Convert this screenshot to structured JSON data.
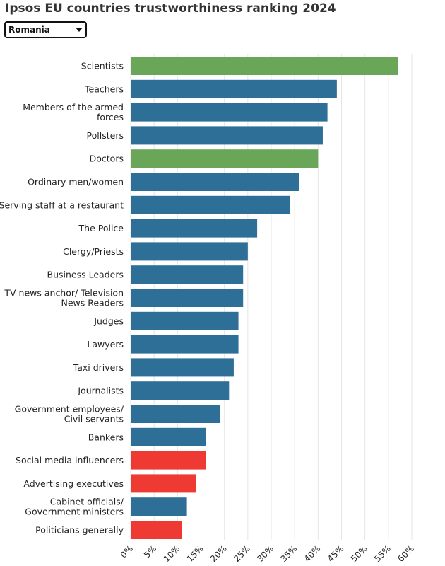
{
  "title": "Ipsos EU countries trustworthiness ranking 2024",
  "country_selector": {
    "value": "Romania"
  },
  "colors": {
    "trusted": "#6aa657",
    "neutral": "#2e6f97",
    "distrusted": "#ef3a34",
    "grid": "#e6e6e6"
  },
  "chart_data": {
    "type": "bar",
    "orientation": "horizontal",
    "categories": [
      "Scientists",
      "Teachers",
      "Members of the armed forces",
      "Pollsters",
      "Doctors",
      "Ordinary men/women",
      "Serving staff at a restaurant",
      "The Police",
      "Clergy/Priests",
      "Business Leaders",
      "TV news anchor/ Television News Readers",
      "Judges",
      "Lawyers",
      "Taxi drivers",
      "Journalists",
      "Government employees/ Civil servants",
      "Bankers",
      "Social media influencers",
      "Advertising executives",
      "Cabinet officials/ Government ministers",
      "Politicians generally"
    ],
    "category_lines": [
      [
        "Scientists"
      ],
      [
        "Teachers"
      ],
      [
        "Members of the armed",
        "forces"
      ],
      [
        "Pollsters"
      ],
      [
        "Doctors"
      ],
      [
        "Ordinary men/women"
      ],
      [
        "Serving staff at a restaurant"
      ],
      [
        "The Police"
      ],
      [
        "Clergy/Priests"
      ],
      [
        "Business Leaders"
      ],
      [
        "TV news anchor/ Television",
        "News Readers"
      ],
      [
        "Judges"
      ],
      [
        "Lawyers"
      ],
      [
        "Taxi drivers"
      ],
      [
        "Journalists"
      ],
      [
        "Government employees/",
        "Civil servants"
      ],
      [
        "Bankers"
      ],
      [
        "Social media influencers"
      ],
      [
        "Advertising executives"
      ],
      [
        "Cabinet officials/",
        "Government ministers"
      ],
      [
        "Politicians generally"
      ]
    ],
    "values": [
      57,
      44,
      42,
      41,
      40,
      36,
      34,
      27,
      25,
      24,
      24,
      23,
      23,
      22,
      21,
      19,
      16,
      16,
      14,
      12,
      11
    ],
    "groups": [
      "trusted",
      "neutral",
      "neutral",
      "neutral",
      "trusted",
      "neutral",
      "neutral",
      "neutral",
      "neutral",
      "neutral",
      "neutral",
      "neutral",
      "neutral",
      "neutral",
      "neutral",
      "neutral",
      "neutral",
      "distrusted",
      "distrusted",
      "neutral",
      "distrusted"
    ],
    "xlim": [
      0,
      60
    ],
    "xticks": [
      0,
      5,
      10,
      15,
      20,
      25,
      30,
      35,
      40,
      45,
      50,
      55,
      60
    ],
    "xtick_labels": [
      "0%",
      "5%",
      "10%",
      "15%",
      "20%",
      "25%",
      "30%",
      "35%",
      "40%",
      "45%",
      "50%",
      "55%",
      "60%"
    ],
    "grid": true,
    "xlabel": "",
    "ylabel": ""
  }
}
